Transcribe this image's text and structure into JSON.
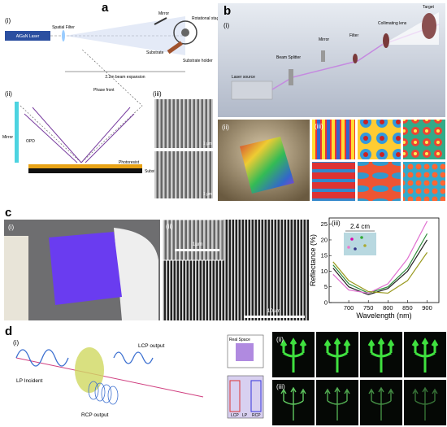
{
  "panel_a": {
    "label": "a",
    "sub_i": "(i)",
    "laser": "AlGaN Laser",
    "spatial_filter": "Spatial Filter",
    "mirror": "Mirror",
    "rotational_stage": "Rotational stage",
    "substrate": "Substrate",
    "substrate_holder": "Substrate holder",
    "beam_expansion": "2.2m beam expansion",
    "sub_ii": "(ii)",
    "sub_iii": "(iii)",
    "phase_front": "Phase front",
    "mirror_ii": "Mirror",
    "opd": "OPD",
    "photoresist": "Photoresist",
    "substrate_ii": "Substrate",
    "scale_top": "1 μm",
    "scale_bottom": "1 μm"
  },
  "panel_b": {
    "label": "b",
    "sub_i": "(i)",
    "target": "Target",
    "collimating_lens": "Collimating lens",
    "filter": "Filter",
    "mirror": "Mirror",
    "beam_splitter": "Beam Splitter",
    "laser_source": "Laser source",
    "sub_ii": "(ii)",
    "sub_iii": "(iii)"
  },
  "panel_c": {
    "label": "c",
    "sub_i": "(i)",
    "sub_ii": "(ii)",
    "scale_inset": "1µm",
    "scale_main": "10µm",
    "chart_data": {
      "type": "line",
      "subtitle": "(iii)",
      "annotation": "2.4 cm",
      "x_label": "Wavelength (nm)",
      "y_label": "Reflectance (%)",
      "x": [
        660,
        700,
        750,
        800,
        850,
        900
      ],
      "series": [
        {
          "color": "#2e8b3a",
          "values": [
            12,
            6,
            3,
            5,
            11,
            22
          ]
        },
        {
          "color": "#222222",
          "values": [
            11,
            5,
            2.5,
            4.5,
            10,
            20
          ]
        },
        {
          "color": "#e070d0",
          "values": [
            9,
            4,
            3,
            6,
            14,
            26
          ]
        },
        {
          "color": "#9a9a20",
          "values": [
            13,
            7,
            3.5,
            3,
            7,
            16
          ]
        }
      ],
      "xlim": [
        650,
        930
      ],
      "ylim": [
        0,
        27
      ],
      "xticks": [
        700,
        750,
        800,
        850,
        900
      ],
      "yticks": [
        0,
        5,
        10,
        15,
        20,
        25
      ]
    }
  },
  "panel_d": {
    "label": "d",
    "sub_i": "(i)",
    "lcp_output": "LCP output",
    "lp_incident": "LP Incident",
    "rcp_output": "RCP output",
    "real_space": "Real Space",
    "lcp": "LCP",
    "lp": "LP",
    "rcp": "RCP",
    "sub_ii": "(ii)",
    "sub_iii": "(iii)"
  }
}
